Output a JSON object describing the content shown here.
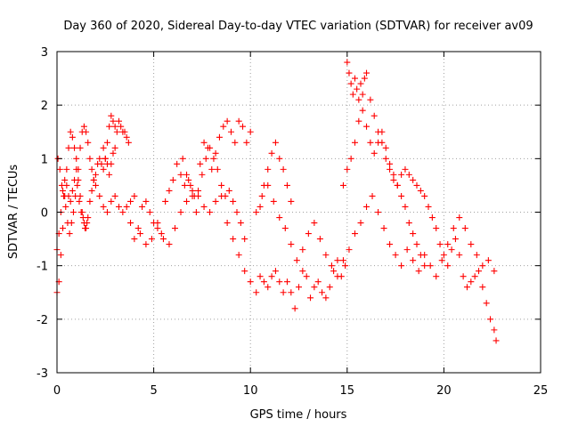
{
  "chart_data": {
    "type": "scatter",
    "title": "Day 360 of 2020, Sidereal Day-to-day VTEC variation (SDTVAR) for receiver av09",
    "xlabel": "GPS time / hours",
    "ylabel": "SDTVAR / TECUs",
    "xlim": [
      0,
      25
    ],
    "ylim": [
      -3,
      3
    ],
    "xticks": [
      "0",
      "5",
      "10",
      "15",
      "20",
      "25"
    ],
    "yticks": [
      "-3",
      "-2",
      "-1",
      "0",
      "1",
      "2",
      "3"
    ],
    "grid": true,
    "marker": "+",
    "series": [
      {
        "name": "SDTVAR",
        "color": "#ff0000",
        "x": [
          0.0,
          0.1,
          0.2,
          0.3,
          0.4,
          0.5,
          0.6,
          0.7,
          0.8,
          0.9,
          1.0,
          1.1,
          1.2,
          1.3,
          1.4,
          1.5,
          1.6,
          1.7,
          1.8,
          1.9,
          2.0,
          2.1,
          2.2,
          2.3,
          2.4,
          2.5,
          2.6,
          2.7,
          2.8,
          2.9,
          3.0,
          3.1,
          3.2,
          3.3,
          3.4,
          3.5,
          3.6,
          3.7,
          3.8,
          4.0,
          4.2,
          4.4,
          4.6,
          4.8,
          5.0,
          5.2,
          5.4,
          5.6,
          5.8,
          6.0,
          6.2,
          6.4,
          6.6,
          6.8,
          7.0,
          7.2,
          7.4,
          7.6,
          7.8,
          8.0,
          8.2,
          8.4,
          8.6,
          8.8,
          9.0,
          9.2,
          9.4,
          9.6,
          9.8,
          10.0,
          10.3,
          10.5,
          10.7,
          10.9,
          11.1,
          11.3,
          11.5,
          11.7,
          11.9,
          12.1,
          12.3,
          12.5,
          12.7,
          12.9,
          13.1,
          13.3,
          13.5,
          13.7,
          13.9,
          14.1,
          14.3,
          14.5,
          14.7,
          14.9,
          15.0,
          15.1,
          15.2,
          15.3,
          15.4,
          15.5,
          15.6,
          15.7,
          15.8,
          15.9,
          16.0,
          16.2,
          16.4,
          16.6,
          16.8,
          17.0,
          17.2,
          17.4,
          17.6,
          17.8,
          18.0,
          18.2,
          18.4,
          18.6,
          18.8,
          19.0,
          19.2,
          19.4,
          19.6,
          19.8,
          20.0,
          20.2,
          20.4,
          20.6,
          20.8,
          21.0,
          21.2,
          21.4,
          21.6,
          21.8,
          22.0,
          22.2,
          22.4,
          22.6,
          22.7,
          0.0,
          0.1,
          0.2,
          0.3,
          0.4,
          0.5,
          0.6,
          0.7,
          0.8,
          0.9,
          1.0,
          1.1,
          1.2,
          1.3,
          1.4,
          1.5,
          1.6,
          1.7,
          1.8,
          1.9,
          2.0,
          2.2,
          2.4,
          2.6,
          2.8,
          3.0,
          3.2,
          3.4,
          3.6,
          3.8,
          4.0,
          4.3,
          4.6,
          4.9,
          5.2,
          5.5,
          5.8,
          6.1,
          6.4,
          6.7,
          7.0,
          7.3,
          7.6,
          7.9,
          8.2,
          8.5,
          8.8,
          9.1,
          9.4,
          9.7,
          10.0,
          10.3,
          10.6,
          10.9,
          11.2,
          11.5,
          11.8,
          12.1,
          12.4,
          12.7,
          13.0,
          13.3,
          13.6,
          13.9,
          14.2,
          14.5,
          14.8,
          15.1,
          15.4,
          15.7,
          16.0,
          16.3,
          16.6,
          16.9,
          17.2,
          17.5,
          17.8,
          18.1,
          18.4,
          18.7,
          19.0,
          19.3,
          19.6,
          19.9,
          20.2,
          20.5,
          20.8,
          21.1,
          21.4,
          21.7,
          22.0,
          22.3,
          22.6,
          0.05,
          0.15,
          0.25,
          0.35,
          0.45,
          0.55,
          0.65,
          0.75,
          0.85,
          0.95,
          1.05,
          1.15,
          1.25,
          1.35,
          1.45,
          1.55,
          2.4,
          2.5,
          2.6,
          2.7,
          2.8,
          2.9,
          3.0,
          6.5,
          6.7,
          6.9,
          7.1,
          7.3,
          7.5,
          7.7,
          7.9,
          8.1,
          8.3,
          8.5,
          8.7,
          8.9,
          9.1,
          9.3,
          9.5,
          9.7,
          10.5,
          10.7,
          10.9,
          11.1,
          11.3,
          11.5,
          11.7,
          11.9,
          12.1,
          14.8,
          15.0,
          15.2,
          15.4,
          15.6,
          15.8,
          16.0,
          16.2,
          16.4,
          16.6,
          16.8,
          17.0,
          17.2,
          17.4,
          17.6,
          17.8,
          18.0,
          18.2,
          18.4,
          18.6,
          18.8,
          19.0
        ],
        "y": [
          -1.5,
          -1.3,
          -0.8,
          -0.3,
          0.3,
          0.8,
          1.2,
          1.5,
          1.4,
          1.2,
          1.0,
          0.8,
          1.2,
          1.5,
          1.6,
          1.5,
          1.3,
          1.0,
          0.8,
          0.6,
          0.7,
          0.9,
          1.0,
          0.9,
          0.8,
          1.0,
          1.3,
          1.6,
          1.8,
          1.7,
          1.6,
          1.5,
          1.7,
          1.6,
          1.5,
          1.5,
          1.4,
          1.3,
          -0.2,
          -0.5,
          -0.3,
          0.1,
          0.2,
          0.0,
          -0.2,
          -0.3,
          -0.4,
          0.2,
          0.4,
          0.6,
          0.9,
          0.7,
          0.5,
          0.6,
          0.3,
          0.0,
          0.9,
          1.3,
          1.2,
          0.8,
          1.1,
          1.4,
          1.6,
          1.7,
          1.5,
          1.3,
          1.7,
          1.6,
          1.3,
          1.5,
          -1.5,
          -1.2,
          -1.3,
          -1.4,
          -1.2,
          -1.1,
          -1.3,
          -1.5,
          -1.3,
          -1.5,
          -1.8,
          -1.4,
          -1.1,
          -1.2,
          -1.6,
          -1.4,
          -1.3,
          -1.5,
          -1.6,
          -1.4,
          -1.1,
          -0.9,
          -1.2,
          -1.0,
          2.8,
          2.6,
          2.4,
          2.2,
          2.5,
          2.3,
          2.1,
          2.4,
          2.2,
          2.5,
          2.6,
          2.1,
          1.8,
          1.5,
          1.3,
          1.0,
          0.8,
          0.6,
          0.5,
          0.7,
          0.8,
          0.7,
          0.6,
          0.5,
          0.4,
          0.3,
          0.1,
          -0.1,
          -0.3,
          -0.6,
          -0.8,
          -1.0,
          -0.7,
          -0.5,
          -0.8,
          -1.2,
          -1.4,
          -1.3,
          -1.2,
          -1.1,
          -1.4,
          -1.7,
          -2.0,
          -2.2,
          -2.4,
          -0.7,
          -0.4,
          0.0,
          0.4,
          0.6,
          0.5,
          0.3,
          0.2,
          0.4,
          0.6,
          0.8,
          0.6,
          0.3,
          0.0,
          -0.2,
          -0.3,
          -0.1,
          0.2,
          0.4,
          0.6,
          0.5,
          0.3,
          0.1,
          0.0,
          0.2,
          0.3,
          0.1,
          0.0,
          0.1,
          0.2,
          0.3,
          -0.4,
          -0.6,
          -0.5,
          -0.2,
          -0.5,
          -0.6,
          -0.3,
          0.0,
          0.2,
          0.4,
          0.3,
          0.1,
          0.0,
          0.2,
          0.3,
          -0.2,
          -0.5,
          -0.8,
          -1.1,
          -1.3,
          0.0,
          0.3,
          0.5,
          0.2,
          -0.1,
          -0.3,
          -0.6,
          -0.9,
          -0.7,
          -0.4,
          -0.2,
          -0.5,
          -0.8,
          -1.0,
          -1.2,
          -0.9,
          -0.7,
          -0.4,
          -0.2,
          0.1,
          0.3,
          0.0,
          -0.3,
          -0.6,
          -0.8,
          -1.0,
          -0.7,
          -0.9,
          -1.1,
          -0.8,
          -1.0,
          -1.2,
          -0.9,
          -0.6,
          -0.3,
          -0.1,
          -0.3,
          -0.6,
          -0.8,
          -1.0,
          -0.9,
          -1.1,
          1.0,
          0.8,
          0.5,
          0.3,
          0.1,
          -0.2,
          -0.4,
          -0.2,
          0.0,
          0.3,
          0.5,
          0.2,
          0.0,
          -0.1,
          -0.3,
          -0.2,
          1.2,
          1.0,
          0.9,
          0.7,
          0.9,
          1.1,
          1.2,
          1.0,
          0.7,
          0.5,
          0.3,
          0.4,
          0.7,
          1.0,
          1.2,
          1.0,
          0.8,
          0.5,
          0.3,
          0.4,
          0.2,
          0.0,
          -0.2,
          -0.5,
          0.1,
          0.5,
          0.8,
          1.1,
          1.3,
          1.0,
          0.8,
          0.5,
          0.2,
          0.5,
          0.8,
          1.0,
          1.3,
          1.7,
          1.9,
          1.6,
          1.3,
          1.1,
          1.3,
          1.5,
          1.2,
          0.9,
          0.7,
          0.5,
          0.3,
          0.1,
          -0.2,
          -0.4,
          -0.6,
          -0.8,
          -1.0
        ]
      }
    ]
  }
}
